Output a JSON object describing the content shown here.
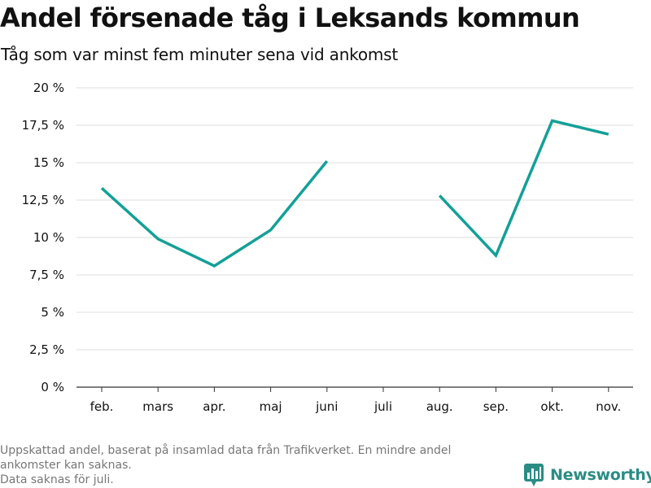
{
  "title": "Andel försenade tåg i Leksands kommun",
  "subtitle": "Tåg som var minst fem minuter sena vid ankomst",
  "footnote": {
    "line1": "Uppskattad andel, baserat på insamlad data från Trafikverket. En mindre andel",
    "line2": "ankomster kan saknas.",
    "line3": "Data saknas för juli."
  },
  "brand": {
    "name": "Newsworthy",
    "icon": "bar-chart-logo-icon",
    "color": "#2b8c84"
  },
  "colors": {
    "line": "#13a097",
    "grid": "#dddddd",
    "axis": "#333333",
    "text": "#111111"
  },
  "chart_data": {
    "type": "line",
    "title": "Andel försenade tåg i Leksands kommun",
    "subtitle": "Tåg som var minst fem minuter sena vid ankomst",
    "categories": [
      "feb.",
      "mars",
      "apr.",
      "maj",
      "juni",
      "juli",
      "aug.",
      "sep.",
      "okt.",
      "nov."
    ],
    "series": [
      {
        "values": [
          13.3,
          9.9,
          8.1,
          10.5,
          15.1,
          null,
          12.8,
          8.8,
          17.8,
          16.9
        ]
      }
    ],
    "ylim": [
      0,
      20
    ],
    "yticks": [
      0,
      2.5,
      5,
      7.5,
      10,
      12.5,
      15,
      17.5,
      20
    ],
    "ytick_labels": [
      "0 %",
      "2,5 %",
      "5 %",
      "7,5 %",
      "10 %",
      "12,5 %",
      "15 %",
      "17,5 %",
      "20 %"
    ],
    "xlabel": "",
    "ylabel": "",
    "grid": true,
    "legend": "none"
  }
}
